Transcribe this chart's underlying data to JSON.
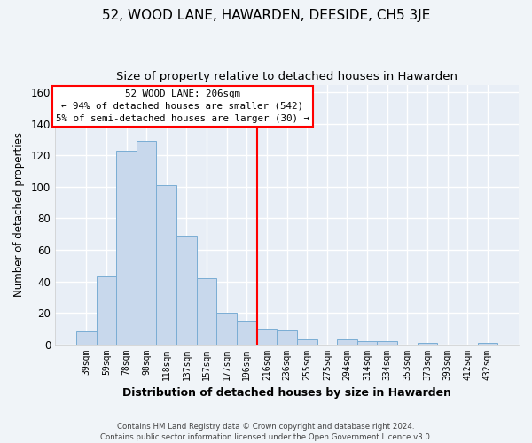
{
  "title": "52, WOOD LANE, HAWARDEN, DEESIDE, CH5 3JE",
  "subtitle": "Size of property relative to detached houses in Hawarden",
  "xlabel": "Distribution of detached houses by size in Hawarden",
  "ylabel": "Number of detached properties",
  "bar_labels": [
    "39sqm",
    "59sqm",
    "78sqm",
    "98sqm",
    "118sqm",
    "137sqm",
    "157sqm",
    "177sqm",
    "196sqm",
    "216sqm",
    "236sqm",
    "255sqm",
    "275sqm",
    "294sqm",
    "314sqm",
    "334sqm",
    "353sqm",
    "373sqm",
    "393sqm",
    "412sqm",
    "432sqm"
  ],
  "bar_heights": [
    8,
    43,
    123,
    129,
    101,
    69,
    42,
    20,
    15,
    10,
    9,
    3,
    0,
    3,
    2,
    2,
    0,
    1,
    0,
    0,
    1
  ],
  "bar_color": "#c8d8ec",
  "bar_edge_color": "#7aadd4",
  "ylim": [
    0,
    165
  ],
  "yticks": [
    0,
    20,
    40,
    60,
    80,
    100,
    120,
    140,
    160
  ],
  "property_line_x": 9.0,
  "property_line_label": "52 WOOD LANE: 206sqm",
  "annotation_line1": "← 94% of detached houses are smaller (542)",
  "annotation_line2": "5% of semi-detached houses are larger (30) →",
  "footer1": "Contains HM Land Registry data © Crown copyright and database right 2024.",
  "footer2": "Contains public sector information licensed under the Open Government Licence v3.0.",
  "plot_bg_color": "#e8eef6",
  "fig_bg_color": "#f0f4f8",
  "grid_color": "#ffffff",
  "title_fontsize": 11,
  "subtitle_fontsize": 9.5
}
